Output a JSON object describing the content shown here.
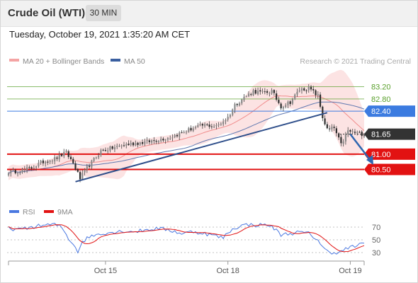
{
  "header": {
    "title": "Crude Oil (WTI)",
    "timeframe": "30 MIN",
    "datetime": "Tuesday, October 19, 2021 1:35:20 AM CET"
  },
  "chart_data": [
    {
      "type": "candlestick",
      "legend": [
        {
          "name": "MA 20 + Bollinger Bands",
          "color": "#f4a4a4"
        },
        {
          "name": "MA 50",
          "color": "#3a5fa0"
        }
      ],
      "credit": "Research © 2021 Trading Central",
      "ylim": [
        79.98,
        83.72
      ],
      "levels": [
        {
          "value": 83.2,
          "label": "83.20",
          "kind": "target",
          "color": "#5aa02c"
        },
        {
          "value": 82.8,
          "label": "82.80",
          "kind": "target",
          "color": "#5aa02c"
        },
        {
          "value": 82.4,
          "label": "82.40",
          "kind": "pivot",
          "color": "#3b7be0"
        },
        {
          "value": 81.65,
          "label": "81.65",
          "kind": "last",
          "color": "#333333"
        },
        {
          "value": 81.0,
          "label": "81.00",
          "kind": "support",
          "color": "#e21212"
        },
        {
          "value": 80.5,
          "label": "80.50",
          "kind": "support",
          "color": "#e21212"
        }
      ],
      "close_anchors": [
        [
          0,
          80.42
        ],
        [
          5,
          80.45
        ],
        [
          10,
          80.55
        ],
        [
          15,
          80.75
        ],
        [
          20,
          80.85
        ],
        [
          25,
          81.05
        ],
        [
          28,
          80.7
        ],
        [
          31,
          80.2
        ],
        [
          34,
          80.55
        ],
        [
          40,
          81.1
        ],
        [
          50,
          81.3
        ],
        [
          60,
          81.4
        ],
        [
          70,
          81.55
        ],
        [
          80,
          81.85
        ],
        [
          85,
          81.95
        ],
        [
          90,
          81.9
        ],
        [
          95,
          82.2
        ],
        [
          98,
          82.6
        ],
        [
          102,
          82.85
        ],
        [
          106,
          83.05
        ],
        [
          110,
          83.0
        ],
        [
          114,
          83.05
        ],
        [
          118,
          82.55
        ],
        [
          122,
          82.7
        ],
        [
          126,
          83.1
        ],
        [
          130,
          83.15
        ],
        [
          134,
          82.9
        ],
        [
          136,
          82.2
        ],
        [
          138,
          81.8
        ],
        [
          141,
          81.85
        ],
        [
          144,
          81.3
        ],
        [
          147,
          81.75
        ],
        [
          150,
          81.7
        ],
        [
          154,
          81.65
        ]
      ],
      "trendlines": [
        {
          "from": [
            29,
            80.1
          ],
          "to": [
            138,
            82.35
          ],
          "color": "#2e4e8a"
        }
      ],
      "forecast_arrow": {
        "from": [
          148,
          81.65
        ],
        "to": [
          158,
          80.65
        ],
        "color": "#2e66b0"
      },
      "x_ticks": [
        {
          "index": 42,
          "label": "Oct 15"
        },
        {
          "index": 95,
          "label": "Oct 18"
        },
        {
          "index": 148,
          "label": "Oct 19"
        }
      ]
    },
    {
      "type": "line",
      "legend": [
        {
          "name": "RSI",
          "color": "#4a78e0"
        },
        {
          "name": "9MA",
          "color": "#e21212"
        }
      ],
      "ylim": [
        20,
        80
      ],
      "y_ticks": [
        70,
        50,
        30
      ],
      "rsi_anchors": [
        [
          0,
          68
        ],
        [
          5,
          66
        ],
        [
          10,
          70
        ],
        [
          15,
          73
        ],
        [
          20,
          74
        ],
        [
          23,
          70
        ],
        [
          26,
          52
        ],
        [
          28,
          44
        ],
        [
          30,
          32
        ],
        [
          32,
          47
        ],
        [
          35,
          55
        ],
        [
          40,
          60
        ],
        [
          45,
          62
        ],
        [
          50,
          64
        ],
        [
          55,
          63
        ],
        [
          60,
          66
        ],
        [
          65,
          68
        ],
        [
          70,
          65
        ],
        [
          75,
          60
        ],
        [
          80,
          63
        ],
        [
          85,
          60
        ],
        [
          90,
          56
        ],
        [
          93,
          53
        ],
        [
          95,
          62
        ],
        [
          98,
          68
        ],
        [
          100,
          72
        ],
        [
          104,
          74
        ],
        [
          108,
          73
        ],
        [
          112,
          74
        ],
        [
          115,
          68
        ],
        [
          118,
          58
        ],
        [
          122,
          60
        ],
        [
          126,
          62
        ],
        [
          130,
          60
        ],
        [
          134,
          50
        ],
        [
          136,
          38
        ],
        [
          138,
          32
        ],
        [
          141,
          30
        ],
        [
          144,
          31
        ],
        [
          146,
          36
        ],
        [
          150,
          40
        ],
        [
          154,
          44
        ]
      ]
    }
  ]
}
